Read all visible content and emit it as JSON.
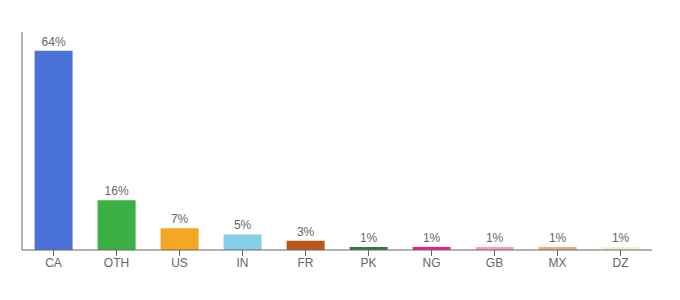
{
  "chart_data": {
    "type": "bar",
    "categories": [
      "CA",
      "OTH",
      "US",
      "IN",
      "FR",
      "PK",
      "NG",
      "GB",
      "MX",
      "DZ"
    ],
    "values": [
      64,
      16,
      7,
      5,
      3,
      1,
      1,
      1,
      1,
      1
    ],
    "value_labels": [
      "64%",
      "16%",
      "7%",
      "5%",
      "3%",
      "1%",
      "1%",
      "1%",
      "1%",
      "1%"
    ],
    "colors": [
      "#4a72d9",
      "#3cb045",
      "#f5a623",
      "#87ceeb",
      "#b8591a",
      "#2e7d32",
      "#ff1493",
      "#ff9eb5",
      "#f4a882",
      "#f5f0c8"
    ],
    "ylim": [
      0,
      70
    ],
    "data_labels": true,
    "tick_labels": "x"
  }
}
